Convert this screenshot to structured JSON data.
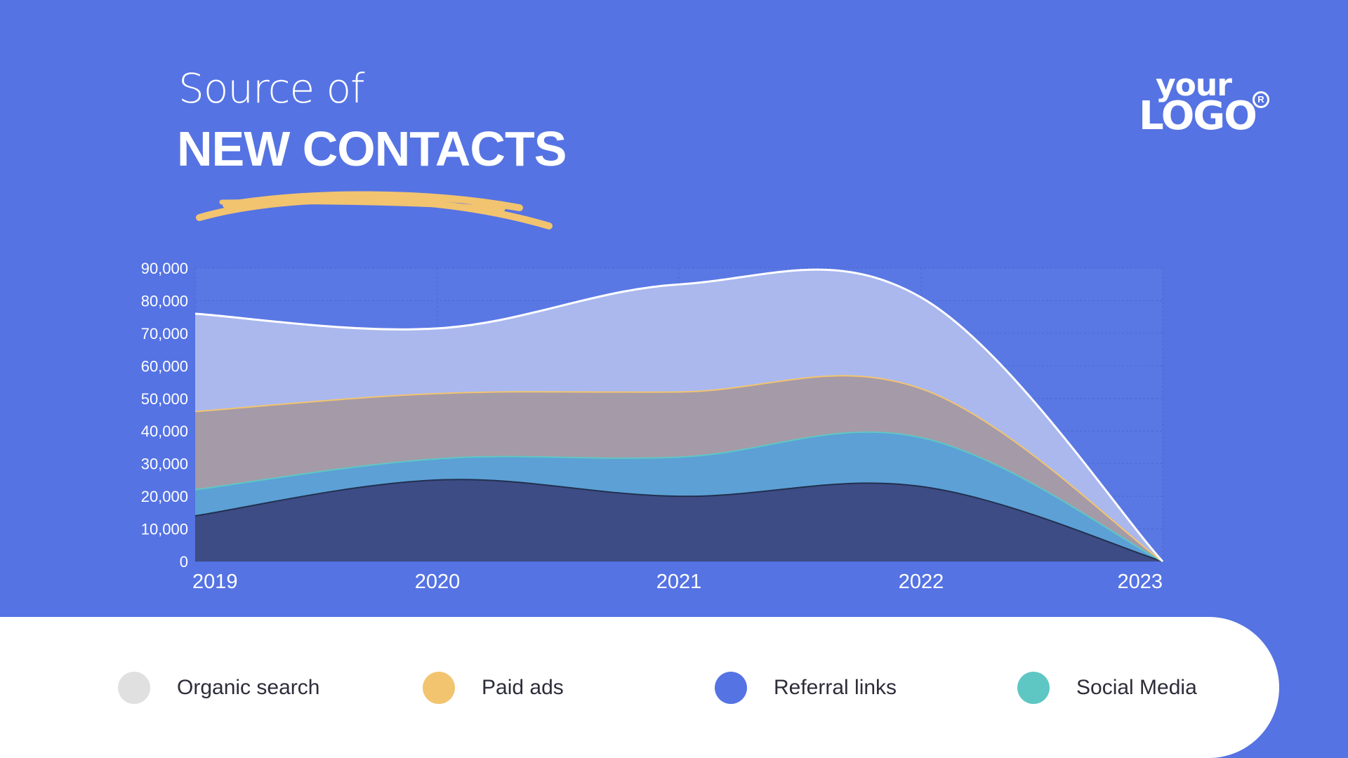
{
  "header": {
    "title_line1": "Source of",
    "title_line2": "NEW CONTACTS"
  },
  "logo": {
    "line1": "your",
    "line2": "LOGO",
    "mark": "R"
  },
  "colors": {
    "background": "#5573e3",
    "accent": "#f2c46f",
    "organic": "#aab8ee",
    "paid": "#a59aa8",
    "referral": "#5ca0d6",
    "social": "#3d4c85",
    "legend_organic": "#e0e0e0",
    "legend_paid": "#f2c46f",
    "legend_referral": "#5573e3",
    "legend_social": "#5ec7c4"
  },
  "legend": [
    {
      "label": "Organic search",
      "color": "#e0e0e0"
    },
    {
      "label": "Paid ads",
      "color": "#f2c46f"
    },
    {
      "label": "Referral links",
      "color": "#5573e3"
    },
    {
      "label": "Social Media",
      "color": "#5ec7c4"
    }
  ],
  "chart_data": {
    "type": "area",
    "stacked": true,
    "x": [
      "2019",
      "2020",
      "2021",
      "2022",
      "2023"
    ],
    "ylim": [
      0,
      90000
    ],
    "yticks": [
      0,
      10000,
      20000,
      30000,
      40000,
      50000,
      60000,
      70000,
      80000,
      90000
    ],
    "ytick_labels": [
      "0",
      "10,000",
      "20,000",
      "30,000",
      "40,000",
      "50,000",
      "60,000",
      "70,000",
      "80,000",
      "90,000"
    ],
    "grid": true,
    "series": [
      {
        "name": "Social Media",
        "values": [
          14000,
          25000,
          20000,
          23000,
          0
        ]
      },
      {
        "name": "Referral links",
        "values": [
          8000,
          6500,
          12000,
          15000,
          0
        ]
      },
      {
        "name": "Paid ads",
        "values": [
          24000,
          20000,
          20000,
          15000,
          0
        ]
      },
      {
        "name": "Organic search",
        "values": [
          30000,
          20000,
          33000,
          28000,
          0
        ]
      }
    ],
    "stack_totals": [
      [
        14000,
        25000,
        20000,
        23000,
        0
      ],
      [
        22000,
        31500,
        32000,
        38000,
        0
      ],
      [
        46000,
        51500,
        52000,
        53000,
        0
      ],
      [
        76000,
        71500,
        85000,
        81000,
        0
      ]
    ]
  }
}
